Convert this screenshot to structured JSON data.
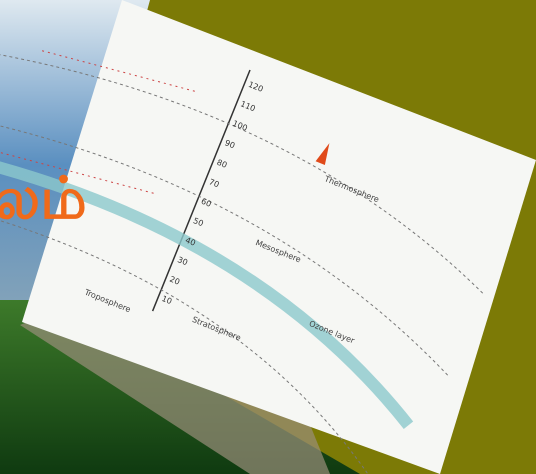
{
  "overlay_text": "லம்",
  "diagram": {
    "layers": [
      "Thermosphere",
      "Mesosphere",
      "Ozone layer",
      "Stratosphere",
      "Troposphere"
    ],
    "heights": [
      "120",
      "110",
      "100",
      "90",
      "80",
      "70",
      "60",
      "50",
      "40",
      "30",
      "20",
      "10"
    ]
  }
}
